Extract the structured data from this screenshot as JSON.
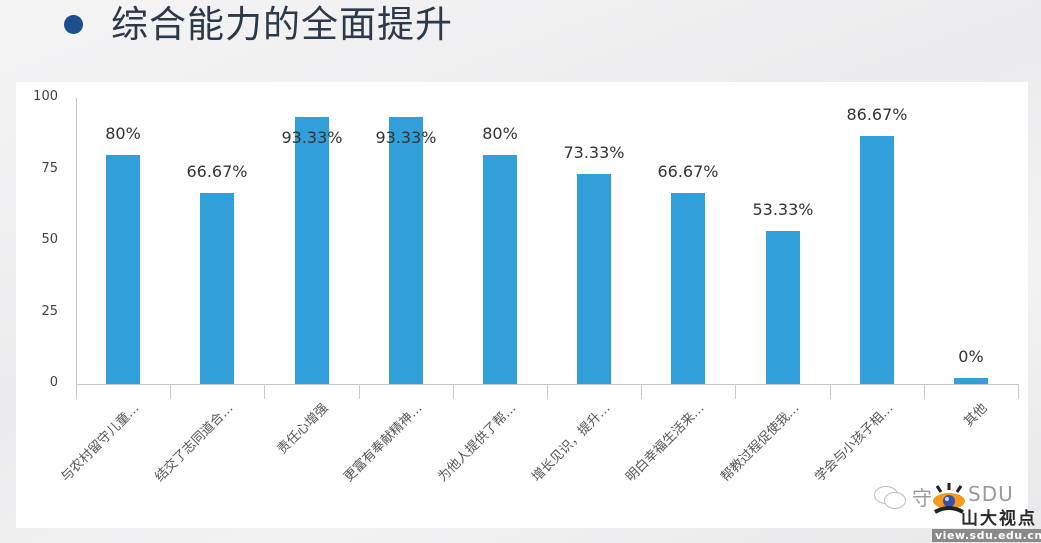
{
  "header": {
    "title": "综合能力的全面提升",
    "bullet_color": "#1d4f8f"
  },
  "chart_data": {
    "type": "bar",
    "title": "综合能力的全面提升",
    "xlabel": "",
    "ylabel": "",
    "ylim": [
      0,
      100
    ],
    "yticks": [
      0,
      25,
      50,
      75,
      100
    ],
    "grid": false,
    "legend": null,
    "bar_color": "#319fd9",
    "categories": [
      "与农村留守儿童…",
      "结交了志同道合…",
      "责任心增强",
      "更富有奉献精神…",
      "为他人提供了帮…",
      "增长见识，提升…",
      "明白幸福生活来…",
      "帮教过程促使我…",
      "学会与小孩子相…",
      "其他"
    ],
    "values": [
      80,
      66.67,
      93.33,
      93.33,
      80,
      73.33,
      66.67,
      53.33,
      86.67,
      0
    ],
    "value_labels": [
      "80%",
      "66.67%",
      "93.33%",
      "93.33%",
      "80%",
      "73.33%",
      "66.67%",
      "53.33%",
      "86.67%",
      "0%"
    ]
  },
  "watermark": {
    "prefix": "守",
    "brand": "SDU",
    "name": "山大视点",
    "url": "view.sdu.edu.cn"
  }
}
